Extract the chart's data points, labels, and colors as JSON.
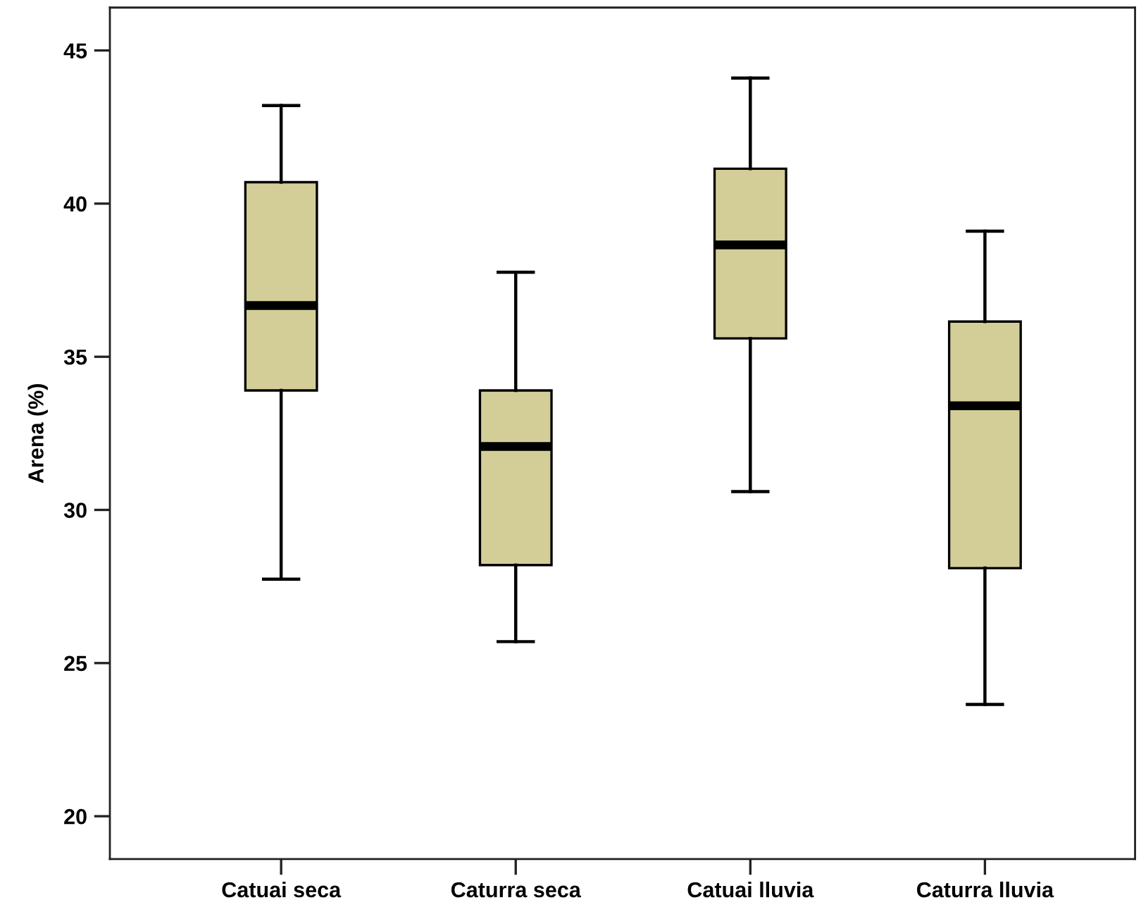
{
  "chart_data": {
    "type": "box",
    "ylabel": "Arena (%)",
    "categories": [
      "Catuai seca",
      "Caturra seca",
      "Catuai lluvia",
      "Caturra lluvia"
    ],
    "boxes": [
      {
        "low": 27.74,
        "q1": 33.9,
        "median": 36.67,
        "q3": 40.7,
        "high": 43.2
      },
      {
        "low": 25.7,
        "q1": 28.2,
        "median": 32.07,
        "q3": 33.9,
        "high": 37.76
      },
      {
        "low": 30.6,
        "q1": 35.6,
        "median": 38.65,
        "q3": 41.14,
        "high": 44.1
      },
      {
        "low": 23.65,
        "q1": 28.1,
        "median": 33.4,
        "q3": 36.15,
        "high": 39.1
      }
    ],
    "color": "#d3ce98",
    "ylim": [
      18.6,
      46.4
    ],
    "yticks": [
      20,
      25,
      30,
      35,
      40,
      45
    ],
    "grid": false
  }
}
